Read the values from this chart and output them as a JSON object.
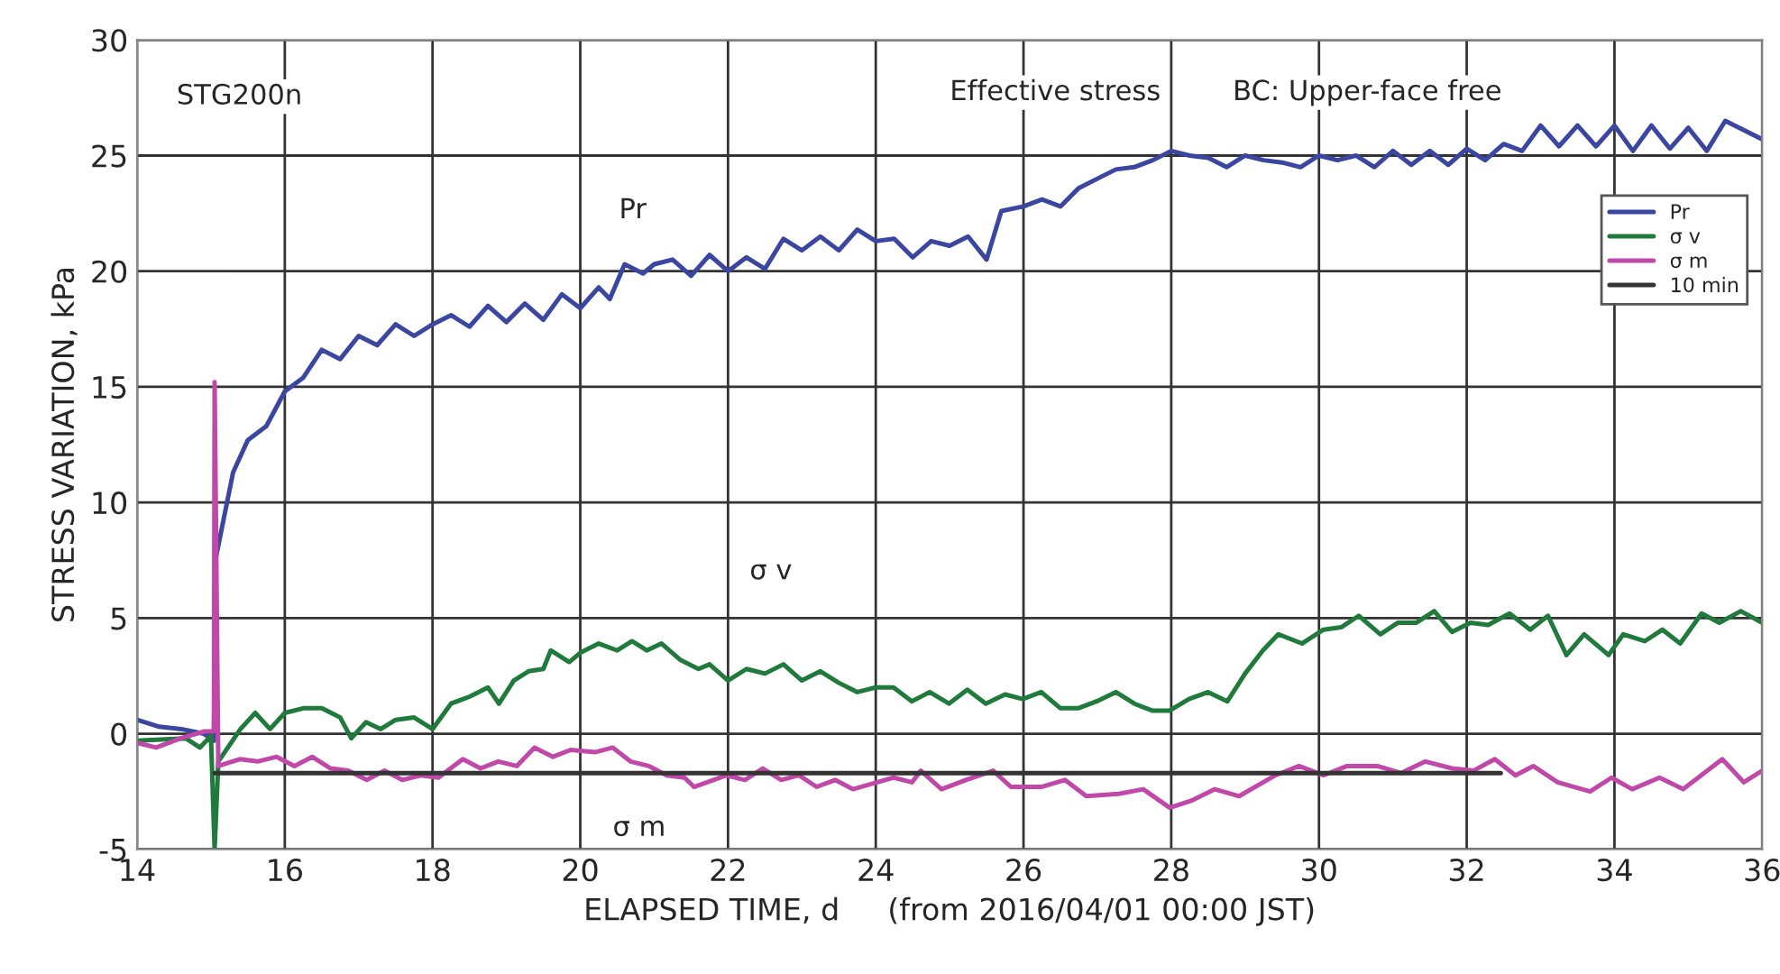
{
  "chart_data": {
    "type": "line",
    "xlabel": "ELAPSED TIME, d     (from 2016/04/01 00:00 JST)",
    "ylabel": "STRESS VARIATION, kPa",
    "xlim": [
      14,
      36
    ],
    "xticks": [
      14,
      16,
      18,
      20,
      22,
      24,
      26,
      28,
      30,
      32,
      34,
      36
    ],
    "ylim": [
      -5,
      30
    ],
    "yticks": [
      -5,
      0,
      5,
      10,
      15,
      20,
      25,
      30
    ],
    "grid": true,
    "legend": "right",
    "line_style": "solid",
    "marker": "none",
    "annotations": [
      "STG200n",
      "Effective stress",
      "BC: Upper-face free",
      "Pr",
      "σ v",
      "σ m"
    ],
    "series": [
      {
        "name": "Pr",
        "color": "#3a46a0",
        "x": [
          14,
          14.3,
          14.6,
          14.9,
          15.04,
          15.06,
          15.3,
          15.5,
          15.75,
          16.0,
          16.25,
          16.5,
          16.75,
          17.0,
          17.25,
          17.5,
          17.75,
          18.0,
          18.25,
          18.5,
          18.75,
          19.0,
          19.25,
          19.5,
          19.75,
          20.0,
          20.25,
          20.4,
          20.6,
          20.85,
          21.0,
          21.25,
          21.5,
          21.75,
          22.0,
          22.25,
          22.5,
          22.75,
          23.0,
          23.25,
          23.5,
          23.75,
          24.0,
          24.25,
          24.5,
          24.75,
          25.0,
          25.25,
          25.5,
          25.7,
          26.0,
          26.25,
          26.5,
          26.75,
          27.0,
          27.25,
          27.5,
          27.75,
          28.0,
          28.25,
          28.5,
          28.75,
          29.0,
          29.25,
          29.5,
          29.75,
          30.0,
          30.25,
          30.5,
          30.75,
          31.0,
          31.25,
          31.5,
          31.75,
          32.0,
          32.25,
          32.5,
          32.75,
          33.0,
          33.25,
          33.5,
          33.75,
          34.0,
          34.25,
          34.5,
          34.75,
          35.0,
          35.25,
          35.5,
          36.0
        ],
        "values": [
          0.6,
          0.3,
          0.2,
          0.0,
          -0.3,
          7.5,
          11.3,
          12.7,
          13.3,
          14.8,
          15.4,
          16.6,
          16.2,
          17.2,
          16.8,
          17.7,
          17.2,
          17.7,
          18.1,
          17.6,
          18.5,
          17.8,
          18.6,
          17.9,
          19.0,
          18.4,
          19.3,
          18.8,
          20.3,
          19.9,
          20.3,
          20.5,
          19.8,
          20.7,
          20.0,
          20.6,
          20.1,
          21.4,
          20.9,
          21.5,
          20.9,
          21.8,
          21.3,
          21.4,
          20.6,
          21.3,
          21.1,
          21.5,
          20.5,
          22.6,
          22.8,
          23.1,
          22.8,
          23.6,
          24.0,
          24.4,
          24.5,
          24.8,
          25.2,
          25.0,
          24.9,
          24.5,
          25.0,
          24.8,
          24.7,
          24.5,
          25.0,
          24.8,
          25.0,
          24.5,
          25.2,
          24.6,
          25.2,
          24.6,
          25.3,
          24.8,
          25.5,
          25.2,
          26.3,
          25.4,
          26.3,
          25.4,
          26.3,
          25.2,
          26.3,
          25.3,
          26.2,
          25.2,
          26.5,
          25.7
        ]
      },
      {
        "name": "σ v",
        "color": "#1f7a3c",
        "x": [
          14,
          14.66,
          14.85,
          15.0,
          15.05,
          15.1,
          15.4,
          15.6,
          15.8,
          16.0,
          16.25,
          16.5,
          16.75,
          16.9,
          17.1,
          17.3,
          17.5,
          17.75,
          18.0,
          18.25,
          18.5,
          18.75,
          18.9,
          19.1,
          19.3,
          19.5,
          19.6,
          19.85,
          20.0,
          20.25,
          20.5,
          20.7,
          20.9,
          21.1,
          21.35,
          21.6,
          21.75,
          22.0,
          22.25,
          22.5,
          22.75,
          23.0,
          23.25,
          23.5,
          23.75,
          24.0,
          24.24,
          24.49,
          24.73,
          24.99,
          25.24,
          25.49,
          25.75,
          25.99,
          26.24,
          26.5,
          26.74,
          26.99,
          27.25,
          27.5,
          27.74,
          27.98,
          28.24,
          28.5,
          28.76,
          29.0,
          29.24,
          29.45,
          29.77,
          30.06,
          30.3,
          30.54,
          30.83,
          31.07,
          31.32,
          31.56,
          31.8,
          32.05,
          32.29,
          32.58,
          32.86,
          33.1,
          33.35,
          33.59,
          33.92,
          34.12,
          34.41,
          34.65,
          34.89,
          35.18,
          35.42,
          35.71,
          36.0
        ],
        "values": [
          -0.3,
          -0.2,
          -0.6,
          -0.1,
          -5.0,
          -1.2,
          0.2,
          0.9,
          0.2,
          0.9,
          1.1,
          1.1,
          0.7,
          -0.2,
          0.5,
          0.2,
          0.6,
          0.7,
          0.2,
          1.3,
          1.6,
          2.0,
          1.3,
          2.3,
          2.7,
          2.8,
          3.6,
          3.1,
          3.5,
          3.9,
          3.6,
          4.0,
          3.6,
          3.9,
          3.2,
          2.8,
          3.0,
          2.3,
          2.8,
          2.6,
          3.0,
          2.3,
          2.7,
          2.2,
          1.8,
          2.0,
          2.0,
          1.4,
          1.8,
          1.3,
          1.9,
          1.3,
          1.7,
          1.5,
          1.8,
          1.1,
          1.1,
          1.4,
          1.8,
          1.3,
          1.0,
          1.0,
          1.5,
          1.8,
          1.4,
          2.6,
          3.6,
          4.3,
          3.9,
          4.5,
          4.6,
          5.1,
          4.3,
          4.8,
          4.8,
          5.3,
          4.4,
          4.8,
          4.7,
          5.2,
          4.5,
          5.1,
          3.4,
          4.3,
          3.4,
          4.3,
          4.0,
          4.5,
          3.9,
          5.2,
          4.8,
          5.3,
          4.8
        ]
      },
      {
        "name": "σ m",
        "color": "#c048a8",
        "x": [
          14,
          14.26,
          14.59,
          14.91,
          15.04,
          15.05,
          15.1,
          15.39,
          15.63,
          15.89,
          16.13,
          16.37,
          16.62,
          16.86,
          17.11,
          17.35,
          17.59,
          17.84,
          18.08,
          18.41,
          18.65,
          18.89,
          19.14,
          19.38,
          19.63,
          19.87,
          20.2,
          20.44,
          20.68,
          20.93,
          21.17,
          21.41,
          21.54,
          21.98,
          22.23,
          22.47,
          22.72,
          22.96,
          23.2,
          23.45,
          23.69,
          24.02,
          24.24,
          24.49,
          24.61,
          24.89,
          25.22,
          25.59,
          25.83,
          26.24,
          26.56,
          26.85,
          27.29,
          27.62,
          27.98,
          28.27,
          28.59,
          28.92,
          29.41,
          29.73,
          30.06,
          30.38,
          30.79,
          31.11,
          31.44,
          31.8,
          32.09,
          32.38,
          32.66,
          32.9,
          33.23,
          33.67,
          33.96,
          34.24,
          34.61,
          34.93,
          35.46,
          35.75,
          36.0
        ],
        "values": [
          -0.4,
          -0.6,
          -0.2,
          0.1,
          0.1,
          15.2,
          -1.4,
          -1.1,
          -1.2,
          -1.0,
          -1.4,
          -1.0,
          -1.5,
          -1.6,
          -2.0,
          -1.6,
          -2.0,
          -1.8,
          -1.9,
          -1.1,
          -1.5,
          -1.2,
          -1.4,
          -0.6,
          -1.0,
          -0.7,
          -0.8,
          -0.6,
          -1.2,
          -1.4,
          -1.8,
          -1.9,
          -2.3,
          -1.8,
          -2.0,
          -1.5,
          -2.0,
          -1.8,
          -2.3,
          -2.0,
          -2.4,
          -2.1,
          -1.9,
          -2.1,
          -1.6,
          -2.4,
          -2.0,
          -1.6,
          -2.3,
          -2.3,
          -2.0,
          -2.7,
          -2.6,
          -2.4,
          -3.2,
          -2.9,
          -2.4,
          -2.7,
          -1.8,
          -1.4,
          -1.8,
          -1.4,
          -1.4,
          -1.7,
          -1.2,
          -1.5,
          -1.6,
          -1.1,
          -1.8,
          -1.4,
          -2.1,
          -2.5,
          -1.9,
          -2.4,
          -1.9,
          -2.4,
          -1.1,
          -2.1,
          -1.6
        ]
      },
      {
        "name": "10 min",
        "color": "#333333",
        "x": [
          15.05,
          32.46
        ],
        "values": [
          -1.7,
          -1.7
        ]
      }
    ]
  }
}
